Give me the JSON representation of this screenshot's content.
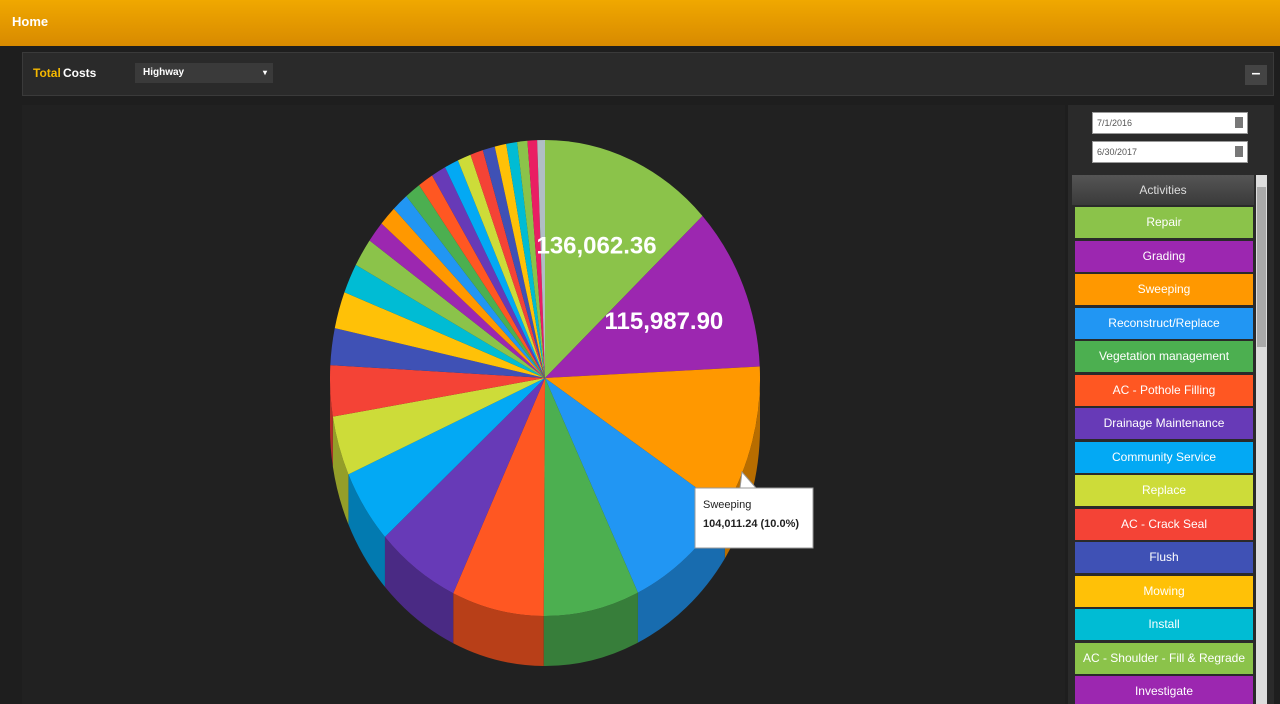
{
  "header": {
    "nav": "Home",
    "title_parts": [
      "Total",
      "Costs"
    ],
    "dropdown": "Highway"
  },
  "filters": {
    "dates": [
      "7/1/2016",
      "6/30/2017"
    ],
    "activities_title": "Activities"
  },
  "chart_data": {
    "type": "pie",
    "categories": [
      "Repair",
      "Grading",
      "Sweeping",
      "Reconstruct/Replace",
      "Vegetation management",
      "AC - Pothole Filling",
      "Drainage Maintenance",
      "Community Service",
      "Replace",
      "AC - Crack Seal",
      "Flush",
      "Mowing",
      "Install",
      "AC - Shoulder - Fill & Regrade",
      "Investigate",
      null,
      null,
      null,
      null,
      null,
      null,
      null,
      null,
      null,
      null,
      null,
      null,
      null,
      null
    ],
    "values": [
      136062.36,
      115987.9,
      104011.24,
      90000,
      75000,
      72000,
      66000,
      52000,
      42000,
      36000,
      26000,
      26000,
      21000,
      20000,
      15000,
      14000,
      13000,
      12500,
      12000,
      11500,
      11000,
      10500,
      10000,
      9500,
      9000,
      8500,
      8000,
      7500,
      6051
    ],
    "value_labels": [
      "136,062.36",
      "115,987.90",
      "104,011.24 (10.0%)",
      null,
      null,
      null,
      null,
      null,
      null,
      null,
      null,
      null,
      null,
      null,
      null,
      null,
      null,
      null,
      null,
      null,
      null,
      null,
      null,
      null,
      null,
      null,
      null,
      null,
      null
    ],
    "colors": [
      "#8bc34a",
      "#9c27b0",
      "#ff9800",
      "#2196f3",
      "#4caf50",
      "#ff5722",
      "#673ab7",
      "#03a9f4",
      "#cddc39",
      "#f44336",
      "#3f51b5",
      "#ffc107",
      "#00bcd4",
      "#8bc34a",
      "#9c27b0",
      "#ff9800",
      "#2196f3",
      "#4caf50",
      "#ff5722",
      "#673ab7",
      "#03a9f4",
      "#cddc39",
      "#f44336",
      "#3f51b5",
      "#ffc107",
      "#00bcd4",
      "#8bc34a",
      "#e91e63",
      "#b0bec5"
    ]
  }
}
